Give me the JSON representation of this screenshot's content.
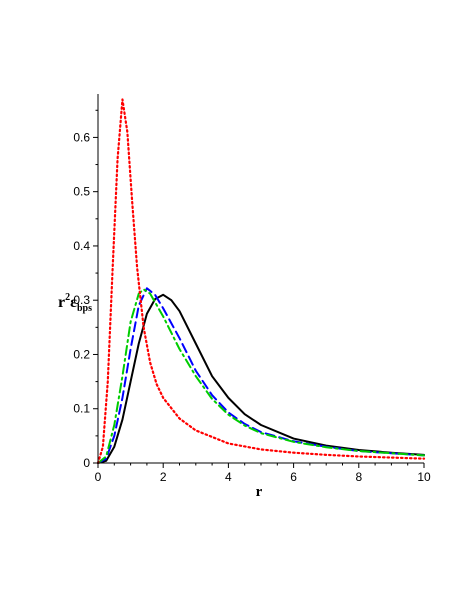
{
  "chart_data": {
    "type": "line",
    "xlabel": "r",
    "ylabel": {
      "base": "r",
      "sup": "2",
      "main": "ε",
      "sub": "bps"
    },
    "xlim": [
      0,
      10
    ],
    "ylim": [
      0,
      0.68
    ],
    "x_ticks": [
      0,
      2,
      4,
      6,
      8,
      10
    ],
    "x_tick_labels": [
      "0",
      "2",
      "4",
      "6",
      "8",
      "10"
    ],
    "y_ticks": [
      0,
      0.1,
      0.2,
      0.3,
      0.4,
      0.5,
      0.6
    ],
    "y_tick_labels": [
      "0",
      "0.1",
      "0.2",
      "0.3",
      "0.4",
      "0.5",
      "0.6"
    ],
    "grid": false,
    "legend": "none",
    "series": [
      {
        "color": "#000000",
        "style": "solid",
        "points": [
          [
            0,
            0
          ],
          [
            0.25,
            0.004
          ],
          [
            0.5,
            0.03
          ],
          [
            0.75,
            0.08
          ],
          [
            1.0,
            0.15
          ],
          [
            1.25,
            0.22
          ],
          [
            1.5,
            0.275
          ],
          [
            1.75,
            0.302
          ],
          [
            2.0,
            0.31
          ],
          [
            2.25,
            0.3
          ],
          [
            2.5,
            0.28
          ],
          [
            3.0,
            0.22
          ],
          [
            3.5,
            0.16
          ],
          [
            4.0,
            0.12
          ],
          [
            4.5,
            0.09
          ],
          [
            5.0,
            0.07
          ],
          [
            6.0,
            0.045
          ],
          [
            7.0,
            0.032
          ],
          [
            8.0,
            0.024
          ],
          [
            9.0,
            0.019
          ],
          [
            10.0,
            0.015
          ]
        ]
      },
      {
        "color": "#0000ff",
        "style": "dash",
        "points": [
          [
            0,
            0
          ],
          [
            0.25,
            0.008
          ],
          [
            0.5,
            0.05
          ],
          [
            0.75,
            0.12
          ],
          [
            1.0,
            0.21
          ],
          [
            1.25,
            0.29
          ],
          [
            1.5,
            0.322
          ],
          [
            1.75,
            0.31
          ],
          [
            2.0,
            0.285
          ],
          [
            2.5,
            0.23
          ],
          [
            3.0,
            0.17
          ],
          [
            3.5,
            0.125
          ],
          [
            4.0,
            0.093
          ],
          [
            4.5,
            0.072
          ],
          [
            5.0,
            0.057
          ],
          [
            6.0,
            0.04
          ],
          [
            7.0,
            0.03
          ],
          [
            8.0,
            0.022
          ],
          [
            9.0,
            0.018
          ],
          [
            10.0,
            0.014
          ]
        ]
      },
      {
        "color": "#00cc00",
        "style": "dashdot",
        "points": [
          [
            0,
            0
          ],
          [
            0.25,
            0.012
          ],
          [
            0.5,
            0.07
          ],
          [
            0.75,
            0.16
          ],
          [
            1.0,
            0.26
          ],
          [
            1.25,
            0.312
          ],
          [
            1.4,
            0.32
          ],
          [
            1.6,
            0.312
          ],
          [
            2.0,
            0.27
          ],
          [
            2.5,
            0.21
          ],
          [
            3.0,
            0.16
          ],
          [
            3.5,
            0.118
          ],
          [
            4.0,
            0.089
          ],
          [
            4.5,
            0.069
          ],
          [
            5.0,
            0.055
          ],
          [
            6.0,
            0.039
          ],
          [
            7.0,
            0.029
          ],
          [
            8.0,
            0.022
          ],
          [
            9.0,
            0.018
          ],
          [
            10.0,
            0.014
          ]
        ]
      },
      {
        "color": "#ff0000",
        "style": "dot",
        "points": [
          [
            0,
            0
          ],
          [
            0.15,
            0.03
          ],
          [
            0.3,
            0.15
          ],
          [
            0.45,
            0.36
          ],
          [
            0.6,
            0.56
          ],
          [
            0.75,
            0.67
          ],
          [
            0.9,
            0.61
          ],
          [
            1.05,
            0.48
          ],
          [
            1.2,
            0.36
          ],
          [
            1.4,
            0.25
          ],
          [
            1.6,
            0.185
          ],
          [
            1.8,
            0.145
          ],
          [
            2.0,
            0.12
          ],
          [
            2.5,
            0.082
          ],
          [
            3.0,
            0.06
          ],
          [
            4.0,
            0.036
          ],
          [
            5.0,
            0.025
          ],
          [
            6.0,
            0.019
          ],
          [
            7.0,
            0.015
          ],
          [
            8.0,
            0.012
          ],
          [
            9.0,
            0.01
          ],
          [
            10.0,
            0.008
          ]
        ]
      }
    ]
  }
}
